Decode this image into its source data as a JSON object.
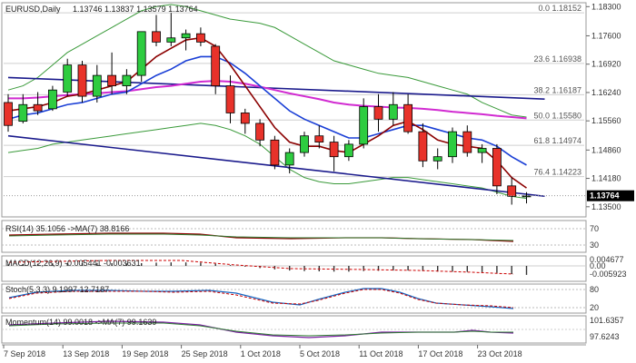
{
  "header": {
    "symbol": "EURUSD,Daily",
    "ohlc": "1.13746 1.13837 1.13579 1.13764"
  },
  "chart_data": {
    "type": "candlestick",
    "price_axis": {
      "ticks": [
        "1.18300",
        "1.17600",
        "1.16920",
        "1.16240",
        "1.15560",
        "1.14860",
        "1.14180",
        "1.13500"
      ],
      "ylim": [
        1.133,
        1.1835
      ],
      "current_price": "1.13764"
    },
    "x_ticks": [
      "7 Sep 2018",
      "13 Sep 2018",
      "19 Sep 2018",
      "25 Sep 2018",
      "1 Oct 2018",
      "5 Oct 2018",
      "11 Oct 2018",
      "17 Oct 2018",
      "23 Oct 2018"
    ],
    "fib_levels": [
      {
        "label": "0.0 1.18152",
        "value": 1.18152
      },
      {
        "label": "23.6 1.16938",
        "value": 1.16938
      },
      {
        "label": "38.2 1.16187",
        "value": 1.16187
      },
      {
        "label": "50.0 1.15580",
        "value": 1.1558
      },
      {
        "label": "61.8 1.14974",
        "value": 1.14974
      },
      {
        "label": "76.4 1.14223",
        "value": 1.14223
      }
    ],
    "candles": [
      {
        "o": 1.16,
        "h": 1.162,
        "l": 1.153,
        "c": 1.1545
      },
      {
        "o": 1.1555,
        "h": 1.162,
        "l": 1.155,
        "c": 1.1595
      },
      {
        "o": 1.1595,
        "h": 1.1625,
        "l": 1.157,
        "c": 1.158
      },
      {
        "o": 1.1585,
        "h": 1.164,
        "l": 1.158,
        "c": 1.163
      },
      {
        "o": 1.1625,
        "h": 1.1705,
        "l": 1.1615,
        "c": 1.169
      },
      {
        "o": 1.169,
        "h": 1.17,
        "l": 1.16,
        "c": 1.1615
      },
      {
        "o": 1.1615,
        "h": 1.169,
        "l": 1.16,
        "c": 1.1665
      },
      {
        "o": 1.1665,
        "h": 1.172,
        "l": 1.162,
        "c": 1.164
      },
      {
        "o": 1.164,
        "h": 1.168,
        "l": 1.162,
        "c": 1.1665
      },
      {
        "o": 1.1665,
        "h": 1.177,
        "l": 1.165,
        "c": 1.177
      },
      {
        "o": 1.177,
        "h": 1.181,
        "l": 1.1735,
        "c": 1.1745
      },
      {
        "o": 1.1745,
        "h": 1.1815,
        "l": 1.1735,
        "c": 1.1755
      },
      {
        "o": 1.1755,
        "h": 1.1775,
        "l": 1.1725,
        "c": 1.1765
      },
      {
        "o": 1.1765,
        "h": 1.178,
        "l": 1.1735,
        "c": 1.1745
      },
      {
        "o": 1.1735,
        "h": 1.174,
        "l": 1.162,
        "c": 1.164
      },
      {
        "o": 1.164,
        "h": 1.1665,
        "l": 1.155,
        "c": 1.1575
      },
      {
        "o": 1.1575,
        "h": 1.1585,
        "l": 1.1525,
        "c": 1.155
      },
      {
        "o": 1.155,
        "h": 1.156,
        "l": 1.1495,
        "c": 1.151
      },
      {
        "o": 1.151,
        "h": 1.152,
        "l": 1.144,
        "c": 1.145
      },
      {
        "o": 1.145,
        "h": 1.149,
        "l": 1.143,
        "c": 1.148
      },
      {
        "o": 1.148,
        "h": 1.153,
        "l": 1.147,
        "c": 1.152
      },
      {
        "o": 1.152,
        "h": 1.1545,
        "l": 1.149,
        "c": 1.1505
      },
      {
        "o": 1.1505,
        "h": 1.152,
        "l": 1.1435,
        "c": 1.147
      },
      {
        "o": 1.147,
        "h": 1.151,
        "l": 1.146,
        "c": 1.15
      },
      {
        "o": 1.15,
        "h": 1.161,
        "l": 1.149,
        "c": 1.159
      },
      {
        "o": 1.159,
        "h": 1.162,
        "l": 1.153,
        "c": 1.156
      },
      {
        "o": 1.156,
        "h": 1.1625,
        "l": 1.1545,
        "c": 1.1595
      },
      {
        "o": 1.1595,
        "h": 1.162,
        "l": 1.1525,
        "c": 1.153
      },
      {
        "o": 1.153,
        "h": 1.155,
        "l": 1.1445,
        "c": 1.146
      },
      {
        "o": 1.146,
        "h": 1.149,
        "l": 1.144,
        "c": 1.147
      },
      {
        "o": 1.147,
        "h": 1.154,
        "l": 1.1455,
        "c": 1.153
      },
      {
        "o": 1.153,
        "h": 1.1545,
        "l": 1.147,
        "c": 1.148
      },
      {
        "o": 1.148,
        "h": 1.15,
        "l": 1.1455,
        "c": 1.149
      },
      {
        "o": 1.149,
        "h": 1.15,
        "l": 1.138,
        "c": 1.14
      },
      {
        "o": 1.14,
        "h": 1.142,
        "l": 1.1355,
        "c": 1.1375
      },
      {
        "o": 1.1375,
        "h": 1.1385,
        "l": 1.1358,
        "c": 1.1376
      }
    ],
    "ma_fast": [
      1.158,
      1.1585,
      1.159,
      1.16,
      1.1615,
      1.162,
      1.163,
      1.164,
      1.165,
      1.168,
      1.171,
      1.173,
      1.175,
      1.1755,
      1.1735,
      1.169,
      1.164,
      1.159,
      1.154,
      1.1505,
      1.1495,
      1.1495,
      1.1485,
      1.148,
      1.15,
      1.152,
      1.1545,
      1.1555,
      1.1535,
      1.151,
      1.15,
      1.1495,
      1.149,
      1.146,
      1.142,
      1.1395
    ],
    "ma_mid": [
      1.156,
      1.157,
      1.1575,
      1.1585,
      1.1595,
      1.16,
      1.161,
      1.162,
      1.1625,
      1.1645,
      1.1665,
      1.168,
      1.17,
      1.171,
      1.171,
      1.1695,
      1.167,
      1.164,
      1.161,
      1.158,
      1.156,
      1.1545,
      1.153,
      1.1515,
      1.1515,
      1.1525,
      1.1535,
      1.1545,
      1.1545,
      1.1535,
      1.1525,
      1.1515,
      1.151,
      1.1495,
      1.147,
      1.145
    ],
    "ma_slow": [
      1.161,
      1.161,
      1.1612,
      1.1615,
      1.1618,
      1.162,
      1.1622,
      1.1625,
      1.1627,
      1.1632,
      1.1637,
      1.164,
      1.1645,
      1.165,
      1.1652,
      1.165,
      1.1645,
      1.1638,
      1.163,
      1.1622,
      1.1615,
      1.1608,
      1.16,
      1.1595,
      1.1592,
      1.159,
      1.1588,
      1.1587,
      1.1585,
      1.1582,
      1.1578,
      1.1575,
      1.1572,
      1.1568,
      1.1565,
      1.1562
    ],
    "bb_upper": [
      1.163,
      1.164,
      1.166,
      1.169,
      1.172,
      1.174,
      1.176,
      1.178,
      1.18,
      1.182,
      1.183,
      1.1835,
      1.183,
      1.182,
      1.181,
      1.18,
      1.1795,
      1.179,
      1.178,
      1.176,
      1.174,
      1.172,
      1.17,
      1.169,
      1.168,
      1.167,
      1.1665,
      1.166,
      1.165,
      1.164,
      1.163,
      1.162,
      1.16,
      1.1585,
      1.157,
      1.1565
    ],
    "bb_lower": [
      1.148,
      1.1485,
      1.149,
      1.15,
      1.1505,
      1.151,
      1.1515,
      1.152,
      1.1525,
      1.153,
      1.1535,
      1.154,
      1.1545,
      1.155,
      1.1545,
      1.1535,
      1.152,
      1.15,
      1.147,
      1.144,
      1.142,
      1.141,
      1.1405,
      1.1405,
      1.141,
      1.1415,
      1.142,
      1.142,
      1.1415,
      1.141,
      1.1405,
      1.14,
      1.1395,
      1.1385,
      1.1375,
      1.137
    ],
    "trendlines": [
      {
        "name": "upper-trendline",
        "x0": 0,
        "y0": 1.166,
        "x1": 35,
        "y1": 1.161
      },
      {
        "name": "lower-trendline",
        "x0": 0,
        "y0": 1.152,
        "x1": 35,
        "y1": 1.138
      }
    ],
    "indicators": {
      "rsi": {
        "label": "RSI(14) 35.1056 ->MA(7) 38.8166",
        "ticks": [
          "70",
          "30"
        ]
      },
      "macd": {
        "label": "MACD(12,26,9) -0.005441 -0.003631",
        "ticks": [
          "0.004677",
          "0.00",
          "-0.005923"
        ]
      },
      "stoch": {
        "label": "Stoch(5,3,3) 9.1997 12.7187",
        "ticks": [
          "80",
          "20"
        ]
      },
      "momentum": {
        "label": "Momentum(14) 99.0018 ->MA(7) 99.1639",
        "ticks": [
          "101.6357",
          "97.6243"
        ]
      }
    }
  }
}
